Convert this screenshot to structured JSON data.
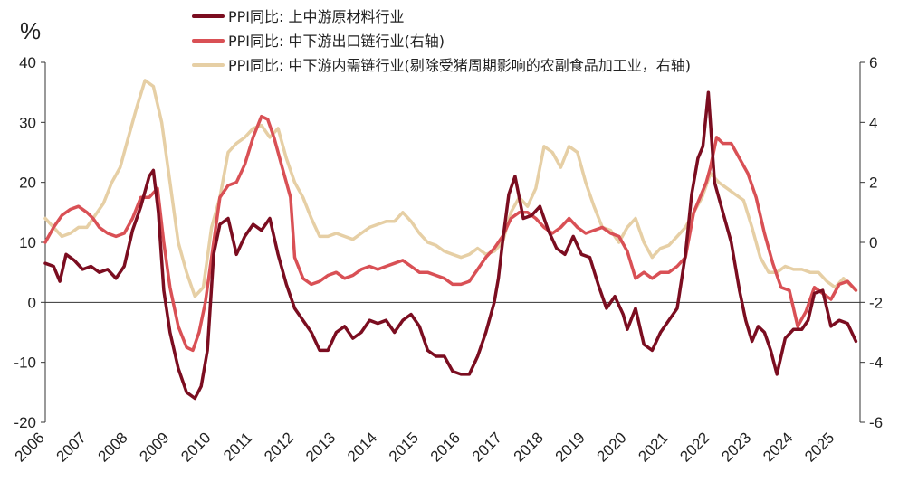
{
  "chart_data": {
    "type": "line",
    "ylabel": "%",
    "ylim_left": [
      -20,
      40
    ],
    "ylim_right": [
      -6,
      6
    ],
    "left_ticks": [
      "40",
      "30",
      "20",
      "10",
      "0",
      "-10",
      "-20"
    ],
    "right_ticks": [
      "6",
      "4",
      "2",
      "0",
      "-2",
      "-4",
      "-6"
    ],
    "x_ticks": [
      "2006",
      "2007",
      "2008",
      "2009",
      "2010",
      "2011",
      "2012",
      "2013",
      "2014",
      "2015",
      "2016",
      "2017",
      "2018",
      "2019",
      "2020",
      "2021",
      "2022",
      "2023",
      "2024",
      "2025"
    ],
    "x_range": [
      2006,
      2025.6
    ],
    "series": [
      {
        "name": "PPI同比: 上中游原材料行业",
        "axis": "left",
        "color": "#7b0d20",
        "x": [
          2006.0,
          2006.2,
          2006.35,
          2006.5,
          2006.7,
          2006.9,
          2007.1,
          2007.3,
          2007.5,
          2007.7,
          2007.9,
          2008.1,
          2008.3,
          2008.5,
          2008.6,
          2008.72,
          2008.85,
          2009.0,
          2009.2,
          2009.4,
          2009.6,
          2009.75,
          2009.9,
          2010.05,
          2010.2,
          2010.4,
          2010.6,
          2010.8,
          2011.0,
          2011.2,
          2011.4,
          2011.6,
          2011.8,
          2012.0,
          2012.2,
          2012.4,
          2012.6,
          2012.8,
          2013.0,
          2013.2,
          2013.4,
          2013.6,
          2013.8,
          2014.0,
          2014.2,
          2014.4,
          2014.6,
          2014.8,
          2015.0,
          2015.2,
          2015.4,
          2015.6,
          2015.8,
          2016.0,
          2016.2,
          2016.4,
          2016.6,
          2016.8,
          2016.9,
          2017.0,
          2017.15,
          2017.3,
          2017.5,
          2017.7,
          2017.9,
          2018.1,
          2018.3,
          2018.5,
          2018.7,
          2018.9,
          2019.1,
          2019.3,
          2019.5,
          2019.7,
          2019.9,
          2020.0,
          2020.2,
          2020.4,
          2020.6,
          2020.8,
          2021.0,
          2021.2,
          2021.4,
          2021.55,
          2021.7,
          2021.82,
          2021.95,
          2022.1,
          2022.3,
          2022.5,
          2022.7,
          2022.85,
          2023.0,
          2023.15,
          2023.3,
          2023.45,
          2023.6,
          2023.8,
          2024.0,
          2024.2,
          2024.35,
          2024.5,
          2024.7,
          2024.9,
          2025.1,
          2025.3,
          2025.5
        ],
        "y": [
          6.5,
          6.0,
          3.5,
          8.0,
          7.0,
          5.5,
          6.0,
          5.0,
          5.5,
          4.0,
          6.0,
          12.0,
          16.0,
          21.0,
          22.0,
          15.0,
          2.0,
          -5.0,
          -11.0,
          -15.0,
          -16.0,
          -14.0,
          -8.0,
          8.0,
          13.0,
          14.0,
          8.0,
          11.0,
          13.0,
          12.0,
          14.0,
          8.0,
          3.0,
          -1.0,
          -3.0,
          -5.0,
          -8.0,
          -8.0,
          -5.0,
          -4.0,
          -6.0,
          -5.0,
          -3.0,
          -3.5,
          -3.0,
          -5.0,
          -3.0,
          -2.0,
          -4.0,
          -8.0,
          -9.0,
          -9.0,
          -11.5,
          -12.0,
          -12.0,
          -9.0,
          -5.0,
          0.0,
          4.0,
          10.0,
          18.0,
          21.0,
          14.0,
          14.5,
          16.0,
          12.0,
          9.0,
          8.0,
          11.0,
          8.0,
          7.5,
          3.0,
          -1.0,
          1.0,
          -2.0,
          -4.5,
          -1.0,
          -7.0,
          -8.0,
          -5.0,
          -3.0,
          -1.0,
          8.0,
          18.0,
          24.0,
          26.0,
          35.0,
          20.0,
          15.0,
          10.0,
          2.0,
          -3.0,
          -6.5,
          -4.0,
          -5.0,
          -8.0,
          -12.0,
          -6.0,
          -4.5,
          -4.5,
          -3.0,
          1.5,
          2.0,
          -4.0,
          -3.0,
          -3.5,
          -6.5
        ]
      },
      {
        "name": "PPI同比: 中下游出口链行业(右轴)",
        "axis": "right",
        "color": "#d95055",
        "x": [
          2006.0,
          2006.2,
          2006.4,
          2006.6,
          2006.8,
          2007.0,
          2007.15,
          2007.3,
          2007.5,
          2007.7,
          2007.9,
          2008.1,
          2008.3,
          2008.5,
          2008.7,
          2008.85,
          2009.0,
          2009.2,
          2009.4,
          2009.55,
          2009.7,
          2009.85,
          2010.0,
          2010.2,
          2010.4,
          2010.6,
          2010.8,
          2011.0,
          2011.2,
          2011.35,
          2011.5,
          2011.7,
          2011.9,
          2012.0,
          2012.2,
          2012.4,
          2012.6,
          2012.8,
          2013.0,
          2013.2,
          2013.4,
          2013.6,
          2013.8,
          2014.0,
          2014.2,
          2014.4,
          2014.6,
          2014.8,
          2015.0,
          2015.2,
          2015.4,
          2015.6,
          2015.8,
          2016.0,
          2016.2,
          2016.4,
          2016.6,
          2016.8,
          2017.0,
          2017.2,
          2017.4,
          2017.6,
          2017.8,
          2018.0,
          2018.2,
          2018.4,
          2018.6,
          2018.8,
          2019.0,
          2019.2,
          2019.4,
          2019.6,
          2019.8,
          2020.0,
          2020.2,
          2020.4,
          2020.6,
          2020.8,
          2021.0,
          2021.2,
          2021.4,
          2021.6,
          2021.75,
          2021.9,
          2022.0,
          2022.15,
          2022.3,
          2022.5,
          2022.7,
          2022.9,
          2023.1,
          2023.3,
          2023.5,
          2023.7,
          2023.9,
          2024.1,
          2024.3,
          2024.5,
          2024.7,
          2024.9,
          2025.1,
          2025.3,
          2025.5
        ],
        "y": [
          0.0,
          0.5,
          0.9,
          1.1,
          1.2,
          1.0,
          0.8,
          0.5,
          0.3,
          0.2,
          0.3,
          0.8,
          1.5,
          1.5,
          1.8,
          0.0,
          -1.5,
          -2.8,
          -3.5,
          -3.6,
          -3.0,
          -2.0,
          -0.5,
          1.5,
          1.9,
          2.0,
          2.6,
          3.5,
          4.2,
          4.1,
          3.5,
          2.5,
          1.5,
          -0.5,
          -1.2,
          -1.4,
          -1.3,
          -1.1,
          -1.0,
          -1.2,
          -1.1,
          -0.9,
          -0.8,
          -0.9,
          -0.8,
          -0.7,
          -0.6,
          -0.8,
          -1.0,
          -1.0,
          -1.1,
          -1.2,
          -1.4,
          -1.4,
          -1.3,
          -0.9,
          -0.5,
          -0.2,
          0.2,
          0.8,
          1.0,
          1.0,
          0.8,
          0.5,
          0.3,
          0.5,
          0.8,
          0.5,
          0.3,
          0.4,
          0.5,
          0.3,
          0.2,
          -0.3,
          -1.2,
          -1.0,
          -1.2,
          -1.0,
          -1.0,
          -0.8,
          -0.5,
          1.0,
          1.5,
          2.0,
          2.5,
          3.5,
          3.3,
          3.3,
          2.8,
          2.3,
          1.5,
          0.3,
          -0.7,
          -1.5,
          -1.6,
          -2.8,
          -2.3,
          -1.5,
          -1.7,
          -1.9,
          -1.4,
          -1.3,
          -1.6
        ]
      },
      {
        "name": "PPI同比: 中下游内需链行业(剔除受猪周期影响的农副食品加工业，右轴)",
        "axis": "right",
        "color": "#e6cfa5",
        "x": [
          2006.0,
          2006.2,
          2006.4,
          2006.6,
          2006.8,
          2007.0,
          2007.2,
          2007.4,
          2007.6,
          2007.8,
          2008.0,
          2008.2,
          2008.4,
          2008.6,
          2008.8,
          2009.0,
          2009.2,
          2009.4,
          2009.6,
          2009.8,
          2010.0,
          2010.2,
          2010.4,
          2010.6,
          2010.8,
          2011.0,
          2011.2,
          2011.4,
          2011.6,
          2011.8,
          2012.0,
          2012.2,
          2012.4,
          2012.6,
          2012.8,
          2013.0,
          2013.2,
          2013.4,
          2013.6,
          2013.8,
          2014.0,
          2014.2,
          2014.4,
          2014.6,
          2014.8,
          2015.0,
          2015.2,
          2015.4,
          2015.6,
          2015.8,
          2016.0,
          2016.2,
          2016.4,
          2016.6,
          2016.8,
          2017.0,
          2017.2,
          2017.4,
          2017.6,
          2017.8,
          2018.0,
          2018.2,
          2018.4,
          2018.6,
          2018.8,
          2019.0,
          2019.2,
          2019.4,
          2019.6,
          2019.8,
          2020.0,
          2020.2,
          2020.4,
          2020.6,
          2020.8,
          2021.0,
          2021.2,
          2021.4,
          2021.6,
          2021.8,
          2022.0,
          2022.2,
          2022.4,
          2022.6,
          2022.8,
          2023.0,
          2023.2,
          2023.4,
          2023.6,
          2023.8,
          2024.0,
          2024.2,
          2024.4,
          2024.6,
          2024.8,
          2025.0,
          2025.2,
          2025.5
        ],
        "y": [
          0.8,
          0.5,
          0.2,
          0.3,
          0.5,
          0.5,
          0.9,
          1.3,
          2.0,
          2.5,
          3.5,
          4.5,
          5.4,
          5.2,
          4.0,
          2.0,
          0.0,
          -1.0,
          -1.8,
          -1.5,
          0.5,
          1.5,
          3.0,
          3.3,
          3.5,
          3.8,
          3.9,
          3.5,
          3.8,
          2.8,
          2.0,
          1.5,
          0.8,
          0.2,
          0.2,
          0.3,
          0.2,
          0.1,
          0.3,
          0.5,
          0.6,
          0.7,
          0.7,
          1.0,
          0.7,
          0.3,
          0.0,
          -0.1,
          -0.3,
          -0.4,
          -0.5,
          -0.4,
          -0.2,
          -0.4,
          -0.3,
          0.0,
          1.0,
          1.5,
          1.2,
          1.8,
          3.2,
          3.0,
          2.5,
          3.2,
          3.0,
          2.0,
          1.2,
          0.5,
          0.4,
          0.0,
          0.5,
          0.8,
          0.0,
          -0.5,
          -0.2,
          -0.1,
          0.2,
          0.5,
          1.0,
          1.5,
          2.3,
          2.0,
          1.8,
          1.6,
          1.4,
          0.5,
          -0.5,
          -1.0,
          -1.0,
          -0.8,
          -0.9,
          -0.9,
          -1.0,
          -1.0,
          -1.3,
          -1.5,
          -1.2,
          -1.6
        ]
      }
    ]
  }
}
